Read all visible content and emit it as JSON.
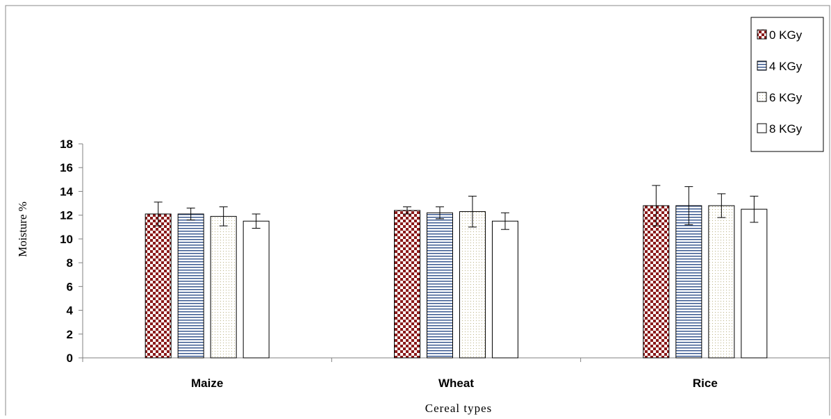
{
  "chart_data": {
    "type": "bar",
    "title": "",
    "xlabel": "Cereal types",
    "ylabel": "Moisture %",
    "categories": [
      "Maize",
      "Wheat",
      "Rice"
    ],
    "ylim": [
      0,
      18
    ],
    "yticks": [
      "0",
      "2",
      "4",
      "6",
      "8",
      "10",
      "12",
      "14",
      "16",
      "18"
    ],
    "grid": false,
    "legend_position": "top-right",
    "series": [
      {
        "name": "0 KGy",
        "pattern": "checkerboard",
        "color": "#8b1a1a",
        "values": [
          12.1,
          12.4,
          12.8
        ],
        "errors": [
          1.0,
          0.3,
          1.7
        ]
      },
      {
        "name": "4 KGy",
        "pattern": "horizontal-lines",
        "color": "#2e4f8a",
        "values": [
          12.1,
          12.2,
          12.8
        ],
        "errors": [
          0.5,
          0.5,
          1.6
        ]
      },
      {
        "name": "6 KGy",
        "pattern": "dotted",
        "color": "#b8b080",
        "values": [
          11.9,
          12.3,
          12.8
        ],
        "errors": [
          0.8,
          1.3,
          1.0
        ]
      },
      {
        "name": "8 KGy",
        "pattern": "none",
        "color": "#ffffff",
        "values": [
          11.5,
          11.5,
          12.5
        ],
        "errors": [
          0.6,
          0.7,
          1.1
        ]
      }
    ]
  }
}
